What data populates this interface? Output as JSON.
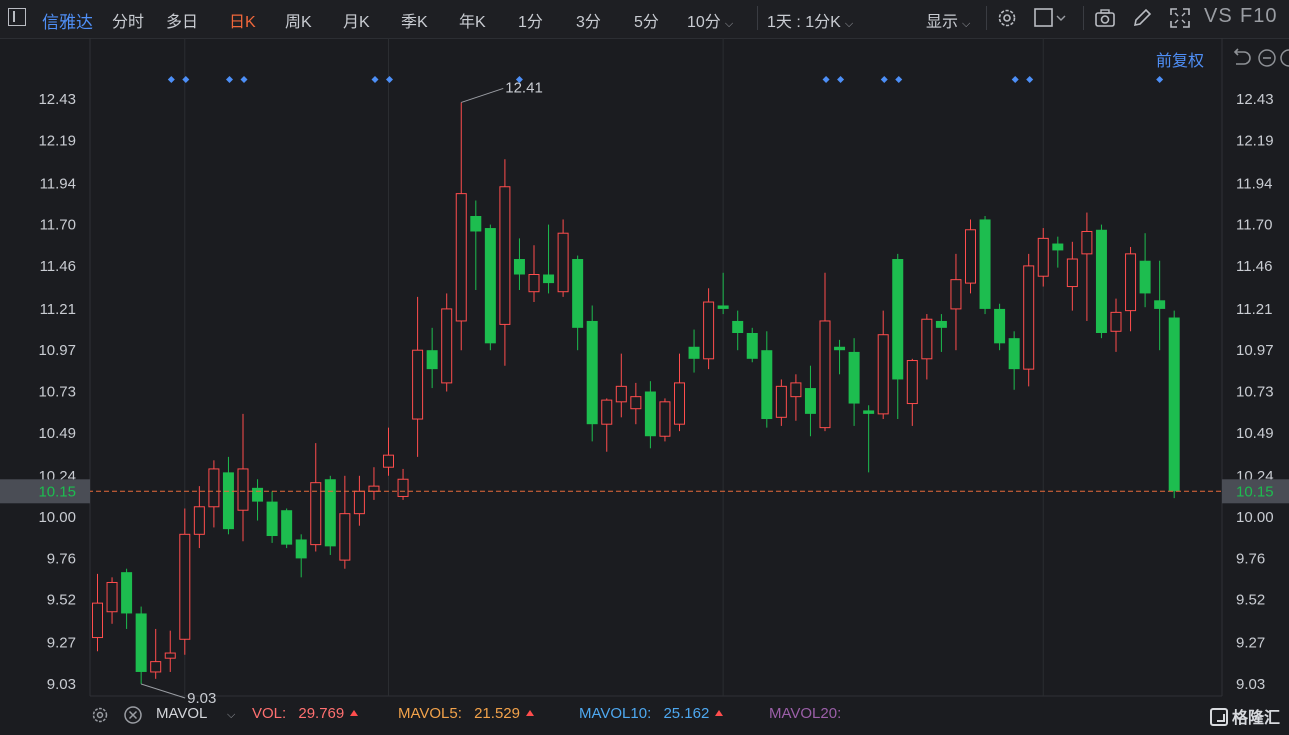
{
  "header": {
    "stock_name": "信雅达",
    "tabs": [
      {
        "label": "分时",
        "active": false
      },
      {
        "label": "多日",
        "active": false
      },
      {
        "label": "日K",
        "active": true
      },
      {
        "label": "周K",
        "active": false
      },
      {
        "label": "月K",
        "active": false
      },
      {
        "label": "季K",
        "active": false
      },
      {
        "label": "年K",
        "active": false
      },
      {
        "label": "1分",
        "active": false
      },
      {
        "label": "3分",
        "active": false
      },
      {
        "label": "5分",
        "active": false
      },
      {
        "label": "10分",
        "active": false
      }
    ],
    "period_select": "1天 : 1分K",
    "display_label": "显示",
    "vs_label": "VS",
    "f10_label": "F10",
    "adjust_label": "前复权"
  },
  "chart_data": {
    "type": "candlestick",
    "y_ticks": [
      "12.43",
      "12.19",
      "11.94",
      "11.70",
      "11.46",
      "11.21",
      "10.97",
      "10.73",
      "10.49",
      "10.24",
      "10.00",
      "9.76",
      "9.52",
      "9.27",
      "9.03"
    ],
    "ylim": [
      8.9,
      12.65
    ],
    "current_price": "10.15",
    "high_label": "12.41",
    "low_label": "9.03",
    "candles": [
      {
        "o": 9.3,
        "c": 9.5,
        "h": 9.67,
        "l": 9.22
      },
      {
        "o": 9.45,
        "c": 9.62,
        "h": 9.65,
        "l": 9.38
      },
      {
        "o": 9.68,
        "c": 9.44,
        "h": 9.7,
        "l": 9.35
      },
      {
        "o": 9.44,
        "c": 9.1,
        "h": 9.48,
        "l": 9.03
      },
      {
        "o": 9.1,
        "c": 9.16,
        "h": 9.35,
        "l": 9.06
      },
      {
        "o": 9.18,
        "c": 9.21,
        "h": 9.34,
        "l": 9.1
      },
      {
        "o": 9.29,
        "c": 9.9,
        "h": 10.05,
        "l": 9.2
      },
      {
        "o": 9.9,
        "c": 10.06,
        "h": 10.18,
        "l": 9.82
      },
      {
        "o": 10.06,
        "c": 10.28,
        "h": 10.33,
        "l": 9.94
      },
      {
        "o": 10.26,
        "c": 9.93,
        "h": 10.35,
        "l": 9.9
      },
      {
        "o": 10.04,
        "c": 10.28,
        "h": 10.6,
        "l": 9.86
      },
      {
        "o": 10.17,
        "c": 10.09,
        "h": 10.22,
        "l": 9.98
      },
      {
        "o": 10.09,
        "c": 9.89,
        "h": 10.15,
        "l": 9.85
      },
      {
        "o": 10.04,
        "c": 9.84,
        "h": 10.05,
        "l": 9.82
      },
      {
        "o": 9.87,
        "c": 9.76,
        "h": 9.9,
        "l": 9.65
      },
      {
        "o": 9.84,
        "c": 10.2,
        "h": 10.43,
        "l": 9.8
      },
      {
        "o": 10.22,
        "c": 9.83,
        "h": 10.24,
        "l": 9.78
      },
      {
        "o": 9.75,
        "c": 10.02,
        "h": 10.24,
        "l": 9.7
      },
      {
        "o": 10.02,
        "c": 10.15,
        "h": 10.24,
        "l": 9.95
      },
      {
        "o": 10.15,
        "c": 10.18,
        "h": 10.29,
        "l": 10.1
      },
      {
        "o": 10.29,
        "c": 10.36,
        "h": 10.52,
        "l": 10.24
      },
      {
        "o": 10.12,
        "c": 10.22,
        "h": 10.28,
        "l": 10.1
      },
      {
        "o": 10.57,
        "c": 10.97,
        "h": 11.28,
        "l": 10.35
      },
      {
        "o": 10.97,
        "c": 10.86,
        "h": 11.1,
        "l": 10.75
      },
      {
        "o": 10.78,
        "c": 11.21,
        "h": 11.3,
        "l": 10.73
      },
      {
        "o": 11.14,
        "c": 11.88,
        "h": 12.41,
        "l": 10.97
      },
      {
        "o": 11.75,
        "c": 11.66,
        "h": 11.84,
        "l": 11.32
      },
      {
        "o": 11.68,
        "c": 11.01,
        "h": 11.7,
        "l": 10.97
      },
      {
        "o": 11.12,
        "c": 11.92,
        "h": 12.08,
        "l": 10.88
      },
      {
        "o": 11.5,
        "c": 11.41,
        "h": 11.62,
        "l": 11.32
      },
      {
        "o": 11.31,
        "c": 11.41,
        "h": 11.58,
        "l": 11.25
      },
      {
        "o": 11.41,
        "c": 11.36,
        "h": 11.7,
        "l": 11.3
      },
      {
        "o": 11.31,
        "c": 11.65,
        "h": 11.73,
        "l": 11.28
      },
      {
        "o": 11.5,
        "c": 11.1,
        "h": 11.52,
        "l": 10.97
      },
      {
        "o": 11.14,
        "c": 10.54,
        "h": 11.23,
        "l": 10.44
      },
      {
        "o": 10.54,
        "c": 10.68,
        "h": 10.69,
        "l": 10.38
      },
      {
        "o": 10.67,
        "c": 10.76,
        "h": 10.95,
        "l": 10.58
      },
      {
        "o": 10.63,
        "c": 10.7,
        "h": 10.78,
        "l": 10.54
      },
      {
        "o": 10.73,
        "c": 10.47,
        "h": 10.79,
        "l": 10.4
      },
      {
        "o": 10.47,
        "c": 10.67,
        "h": 10.69,
        "l": 10.44
      },
      {
        "o": 10.54,
        "c": 10.78,
        "h": 10.95,
        "l": 10.5
      },
      {
        "o": 10.99,
        "c": 10.92,
        "h": 11.09,
        "l": 10.84
      },
      {
        "o": 10.92,
        "c": 11.25,
        "h": 11.33,
        "l": 10.86
      },
      {
        "o": 11.23,
        "c": 11.21,
        "h": 11.42,
        "l": 11.18
      },
      {
        "o": 11.14,
        "c": 11.07,
        "h": 11.2,
        "l": 10.97
      },
      {
        "o": 11.07,
        "c": 10.92,
        "h": 11.1,
        "l": 10.9
      },
      {
        "o": 10.97,
        "c": 10.57,
        "h": 11.08,
        "l": 10.52
      },
      {
        "o": 10.58,
        "c": 10.76,
        "h": 10.8,
        "l": 10.53
      },
      {
        "o": 10.7,
        "c": 10.78,
        "h": 10.83,
        "l": 10.56
      },
      {
        "o": 10.75,
        "c": 10.6,
        "h": 10.88,
        "l": 10.47
      },
      {
        "o": 10.52,
        "c": 11.14,
        "h": 11.42,
        "l": 10.5
      },
      {
        "o": 10.99,
        "c": 10.97,
        "h": 11.03,
        "l": 10.83
      },
      {
        "o": 10.96,
        "c": 10.66,
        "h": 11.04,
        "l": 10.53
      },
      {
        "o": 10.62,
        "c": 10.6,
        "h": 10.65,
        "l": 10.26
      },
      {
        "o": 10.6,
        "c": 11.06,
        "h": 11.2,
        "l": 10.57
      },
      {
        "o": 11.5,
        "c": 10.8,
        "h": 11.53,
        "l": 10.57
      },
      {
        "o": 10.66,
        "c": 10.91,
        "h": 10.92,
        "l": 10.53
      },
      {
        "o": 10.92,
        "c": 11.15,
        "h": 11.18,
        "l": 10.8
      },
      {
        "o": 11.14,
        "c": 11.1,
        "h": 11.18,
        "l": 10.96
      },
      {
        "o": 11.21,
        "c": 11.38,
        "h": 11.53,
        "l": 10.97
      },
      {
        "o": 11.36,
        "c": 11.67,
        "h": 11.73,
        "l": 11.3
      },
      {
        "o": 11.73,
        "c": 11.21,
        "h": 11.75,
        "l": 11.18
      },
      {
        "o": 11.21,
        "c": 11.01,
        "h": 11.24,
        "l": 10.97
      },
      {
        "o": 11.04,
        "c": 10.86,
        "h": 11.08,
        "l": 10.74
      },
      {
        "o": 10.86,
        "c": 11.46,
        "h": 11.53,
        "l": 10.76
      },
      {
        "o": 11.4,
        "c": 11.62,
        "h": 11.68,
        "l": 11.34
      },
      {
        "o": 11.59,
        "c": 11.55,
        "h": 11.63,
        "l": 11.45
      },
      {
        "o": 11.34,
        "c": 11.5,
        "h": 11.6,
        "l": 11.2
      },
      {
        "o": 11.53,
        "c": 11.66,
        "h": 11.77,
        "l": 11.14
      },
      {
        "o": 11.67,
        "c": 11.07,
        "h": 11.7,
        "l": 11.04
      },
      {
        "o": 11.08,
        "c": 11.19,
        "h": 11.27,
        "l": 10.96
      },
      {
        "o": 11.2,
        "c": 11.53,
        "h": 11.57,
        "l": 11.08
      },
      {
        "o": 11.49,
        "c": 11.3,
        "h": 11.65,
        "l": 11.22
      },
      {
        "o": 11.26,
        "c": 11.21,
        "h": 11.49,
        "l": 10.97
      },
      {
        "o": 11.16,
        "c": 10.15,
        "h": 11.2,
        "l": 10.11
      }
    ],
    "markers": [
      {
        "index": 6,
        "pair": true
      },
      {
        "index": 10,
        "pair": true
      },
      {
        "index": 20,
        "pair": true
      },
      {
        "index": 29,
        "pair": false
      },
      {
        "index": 51,
        "pair": true
      },
      {
        "index": 55,
        "pair": true
      },
      {
        "index": 64,
        "pair": true
      },
      {
        "index": 73,
        "pair": false
      }
    ],
    "colors": {
      "up": "#ff4d4d",
      "down": "#1dbd4f",
      "marker": "#4d8ff7",
      "price_line": "#e86a3a",
      "grid": "#2b2d31",
      "axis_text": "#c9ccd2"
    }
  },
  "volume_bar": {
    "indicator": "MAVOL",
    "vol_label": "VOL:",
    "vol_value": "29.769",
    "mavol5_label": "MAVOL5:",
    "mavol5_value": "21.529",
    "mavol10_label": "MAVOL10:",
    "mavol10_value": "25.162",
    "mavol20_label": "MAVOL20:",
    "colors": {
      "vol": "#ff7070",
      "mavol5": "#f2a24a",
      "mavol10": "#4ea8f0",
      "mavol20": "#9b5fa8"
    }
  },
  "brand": {
    "name": "格隆汇"
  }
}
